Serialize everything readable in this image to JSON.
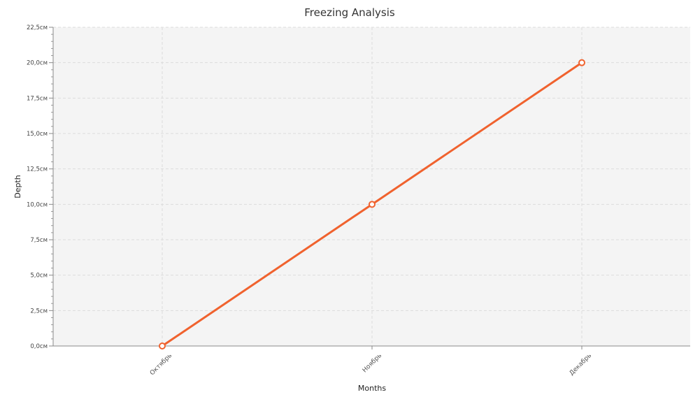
{
  "chart_data": {
    "type": "line",
    "title": "Freezing Analysis",
    "xlabel": "Months",
    "ylabel": "Depth",
    "categories": [
      "Октябрь",
      "Ноябрь",
      "Декабрь"
    ],
    "series": [
      {
        "values": [
          0,
          10,
          20
        ],
        "color": "#f0622e"
      }
    ],
    "ylim": [
      0,
      22.5
    ],
    "yticks": [
      0,
      2.5,
      5,
      7.5,
      10,
      12.5,
      15,
      17.5,
      20,
      22.5
    ],
    "ytick_labels": [
      "0,0см",
      "2,5см",
      "5,0см",
      "7,5см",
      "10,0см",
      "12,5см",
      "15,0см",
      "17,5см",
      "20,0см",
      "22,5см"
    ],
    "grid": true,
    "legend": "none",
    "plot_background": "#f4f4f4",
    "line_color": "#f0622e"
  }
}
